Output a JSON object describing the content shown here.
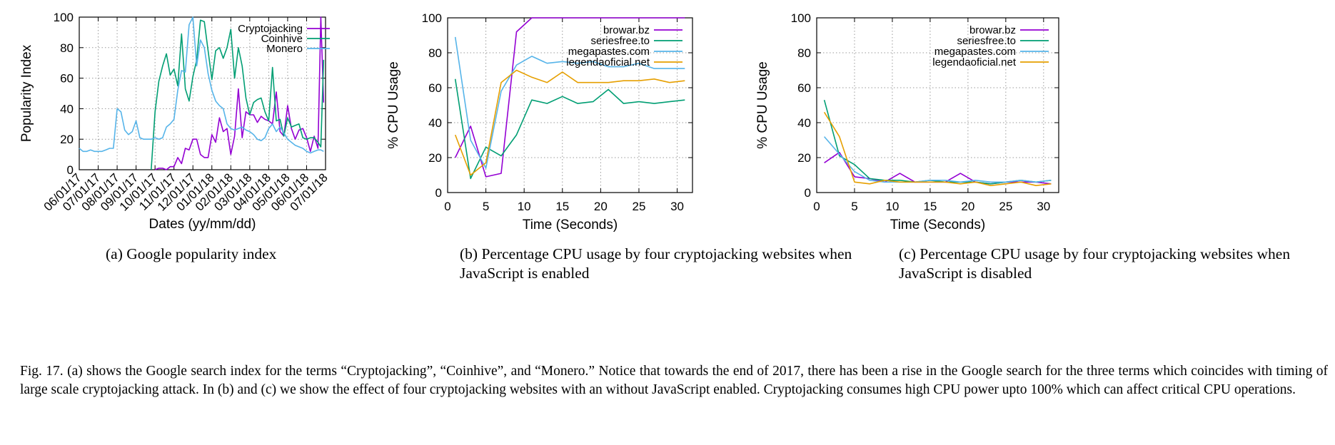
{
  "figure": {
    "caption": "Fig. 17.  (a) shows the Google search index for the terms “Cryptojacking”, “Coinhive”, and “Monero.” Notice that towards the end of 2017, there has been a rise in the Google search for the three terms which coincides with timing of large scale cryptojacking attack. In (b) and (c) we show the effect of four cryptojacking websites with an without JavaScript enabled. Cryptojacking consumes high CPU power upto 100% which can affect critical CPU operations."
  },
  "chart_data": [
    {
      "id": "a",
      "type": "line",
      "caption": "(a)  Google popularity index",
      "xlabel": "Dates (yy/mm/dd)",
      "ylabel": "Popularity Index",
      "xlim": [
        0,
        13
      ],
      "ylim": [
        0,
        100
      ],
      "yticks": [
        0,
        20,
        40,
        60,
        80,
        100
      ],
      "xticks": [
        0,
        1,
        2,
        3,
        4,
        5,
        6,
        7,
        8,
        9,
        10,
        11,
        12,
        13
      ],
      "xtick_labels": [
        "06/01/17",
        "07/01/17",
        "08/01/17",
        "09/01/17",
        "10/01/17",
        "11/01/17",
        "12/01/17",
        "01/01/18",
        "02/01/18",
        "03/01/18",
        "04/01/18",
        "05/01/18",
        "06/01/18",
        "07/01/18"
      ],
      "legend_position": "top-right",
      "grid": "dotted",
      "series": [
        {
          "name": "Cryptojacking",
          "color": "#9400d3",
          "x": [
            4.0,
            4.2,
            4.4,
            4.6,
            4.8,
            5.0,
            5.2,
            5.4,
            5.6,
            5.8,
            6.0,
            6.2,
            6.4,
            6.6,
            6.8,
            7.0,
            7.2,
            7.4,
            7.6,
            7.8,
            8.0,
            8.2,
            8.4,
            8.6,
            8.8,
            9.0,
            9.2,
            9.4,
            9.6,
            9.8,
            10.0,
            10.2,
            10.4,
            10.6,
            10.8,
            11.0,
            11.2,
            11.4,
            11.6,
            11.8,
            12.0,
            12.2,
            12.4,
            12.6,
            12.75,
            12.9
          ],
          "y": [
            0,
            1,
            1,
            0,
            2,
            2,
            8,
            4,
            14,
            13,
            20,
            20,
            10,
            8,
            8,
            23,
            18,
            34,
            25,
            27,
            10,
            22,
            53,
            21,
            38,
            36,
            36,
            31,
            35,
            33,
            32,
            30,
            51,
            25,
            22,
            42,
            27,
            20,
            26,
            27,
            21,
            12,
            22,
            14,
            100,
            44
          ]
        },
        {
          "name": "Coinhive",
          "color": "#009e73",
          "x": [
            3.8,
            4.0,
            4.2,
            4.4,
            4.6,
            4.8,
            5.0,
            5.2,
            5.4,
            5.6,
            5.8,
            6.0,
            6.2,
            6.4,
            6.6,
            6.8,
            7.0,
            7.2,
            7.4,
            7.6,
            7.8,
            8.0,
            8.2,
            8.4,
            8.6,
            8.8,
            9.0,
            9.2,
            9.4,
            9.6,
            9.8,
            10.0,
            10.2,
            10.4,
            10.6,
            10.8,
            11.0,
            11.2,
            11.4,
            11.6,
            11.8,
            12.0,
            12.2,
            12.4,
            12.6,
            12.75,
            12.9
          ],
          "y": [
            0,
            38,
            58,
            68,
            76,
            62,
            66,
            55,
            89,
            53,
            45,
            61,
            72,
            98,
            97,
            78,
            59,
            78,
            80,
            73,
            80,
            92,
            60,
            80,
            68,
            47,
            36,
            44,
            46,
            47,
            38,
            32,
            67,
            32,
            33,
            22,
            34,
            28,
            29,
            30,
            21,
            20,
            21,
            21,
            18,
            15,
            72
          ]
        },
        {
          "name": "Monero",
          "color": "#56b4e9",
          "x": [
            0.0,
            0.2,
            0.4,
            0.6,
            0.8,
            1.0,
            1.2,
            1.4,
            1.6,
            1.8,
            2.0,
            2.2,
            2.4,
            2.6,
            2.8,
            3.0,
            3.2,
            3.4,
            3.6,
            3.8,
            4.0,
            4.2,
            4.4,
            4.6,
            4.8,
            5.0,
            5.2,
            5.4,
            5.6,
            5.8,
            6.0,
            6.2,
            6.4,
            6.6,
            6.8,
            7.0,
            7.2,
            7.4,
            7.6,
            7.8,
            8.0,
            8.2,
            8.4,
            8.6,
            8.8,
            9.0,
            9.2,
            9.4,
            9.6,
            9.8,
            10.0,
            10.2,
            10.4,
            10.6,
            10.8,
            11.0,
            11.2,
            11.4,
            11.6,
            11.8,
            12.0,
            12.2,
            12.4,
            12.6,
            12.75,
            12.9
          ],
          "y": [
            14,
            12,
            12,
            13,
            12,
            12,
            12,
            13,
            14,
            14,
            40,
            38,
            26,
            23,
            25,
            32,
            21,
            20,
            20,
            20,
            21,
            20,
            21,
            28,
            30,
            33,
            52,
            65,
            64,
            95,
            100,
            68,
            85,
            80,
            63,
            52,
            45,
            42,
            40,
            30,
            27,
            26,
            27,
            28,
            26,
            25,
            23,
            20,
            19,
            21,
            27,
            30,
            25,
            28,
            24,
            20,
            18,
            16,
            15,
            14,
            12,
            11,
            12,
            13,
            13,
            12
          ]
        }
      ]
    },
    {
      "id": "b",
      "type": "line",
      "caption": "(b)  Percentage CPU usage by four cryptojacking websites when JavaScript is enabled",
      "xlabel": "Time (Seconds)",
      "ylabel": "% CPU Usage",
      "xlim": [
        0,
        32
      ],
      "ylim": [
        0,
        100
      ],
      "yticks": [
        0,
        20,
        40,
        60,
        80,
        100
      ],
      "xticks": [
        0,
        5,
        10,
        15,
        20,
        25,
        30
      ],
      "legend_position": "top-right",
      "grid": "dotted",
      "series": [
        {
          "name": "browar.bz",
          "color": "#9400d3",
          "x": [
            1,
            3,
            5,
            7,
            9,
            11,
            13,
            15,
            17,
            19,
            21,
            23,
            25,
            27,
            29,
            31
          ],
          "y": [
            20,
            38,
            9,
            11,
            92,
            100,
            100,
            100,
            100,
            100,
            100,
            100,
            100,
            100,
            100,
            100
          ]
        },
        {
          "name": "seriesfree.to",
          "color": "#009e73",
          "x": [
            1,
            3,
            5,
            7,
            9,
            11,
            13,
            15,
            17,
            19,
            21,
            23,
            25,
            27,
            29,
            31
          ],
          "y": [
            65,
            8,
            26,
            21,
            33,
            53,
            51,
            55,
            51,
            52,
            59,
            51,
            52,
            51,
            52,
            53
          ]
        },
        {
          "name": "megapastes.com",
          "color": "#56b4e9",
          "x": [
            1,
            3,
            5,
            7,
            9,
            11,
            13,
            15,
            17,
            19,
            21,
            23,
            25,
            27,
            29,
            31
          ],
          "y": [
            89,
            30,
            14,
            58,
            73,
            78,
            74,
            75,
            74,
            75,
            72,
            72,
            74,
            71,
            71,
            71
          ]
        },
        {
          "name": "legendaoficial.net",
          "color": "#e69f00",
          "x": [
            1,
            3,
            5,
            7,
            9,
            11,
            13,
            15,
            17,
            19,
            21,
            23,
            25,
            27,
            29,
            31
          ],
          "y": [
            33,
            10,
            17,
            63,
            70,
            66,
            63,
            69,
            63,
            63,
            63,
            64,
            64,
            65,
            63,
            64
          ]
        }
      ]
    },
    {
      "id": "c",
      "type": "line",
      "caption": "(c)  Percentage CPU usage by four cryptojacking websites when JavaScript is disabled",
      "xlabel": "Time (Seconds)",
      "ylabel": "% CPU Usage",
      "xlim": [
        0,
        32
      ],
      "ylim": [
        0,
        100
      ],
      "yticks": [
        0,
        20,
        40,
        60,
        80,
        100
      ],
      "xticks": [
        0,
        5,
        10,
        15,
        20,
        25,
        30
      ],
      "legend_position": "top-right",
      "grid": "dotted",
      "series": [
        {
          "name": "browar.bz",
          "color": "#9400d3",
          "x": [
            1,
            3,
            5,
            7,
            9,
            11,
            13,
            15,
            17,
            19,
            21,
            23,
            25,
            27,
            29,
            31
          ],
          "y": [
            17,
            23,
            9,
            8,
            6,
            11,
            6,
            6,
            6,
            11,
            6,
            5,
            6,
            6,
            6,
            5
          ]
        },
        {
          "name": "seriesfree.to",
          "color": "#009e73",
          "x": [
            1,
            3,
            5,
            7,
            9,
            11,
            13,
            15,
            17,
            19,
            21,
            23,
            25,
            27,
            29,
            31
          ],
          "y": [
            53,
            21,
            16,
            8,
            7,
            7,
            6,
            7,
            6,
            6,
            6,
            5,
            6,
            7,
            6,
            7
          ]
        },
        {
          "name": "megapastes.com",
          "color": "#56b4e9",
          "x": [
            1,
            3,
            5,
            7,
            9,
            11,
            13,
            15,
            17,
            19,
            21,
            23,
            25,
            27,
            29,
            31
          ],
          "y": [
            32,
            22,
            12,
            7,
            6,
            6,
            6,
            7,
            7,
            6,
            7,
            6,
            6,
            7,
            6,
            7
          ]
        },
        {
          "name": "legendaoficial.net",
          "color": "#e69f00",
          "x": [
            1,
            3,
            5,
            7,
            9,
            11,
            13,
            15,
            17,
            19,
            21,
            23,
            25,
            27,
            29,
            31
          ],
          "y": [
            46,
            32,
            6,
            5,
            7,
            6,
            6,
            6,
            6,
            5,
            6,
            4,
            5,
            6,
            4,
            5
          ]
        }
      ]
    }
  ]
}
